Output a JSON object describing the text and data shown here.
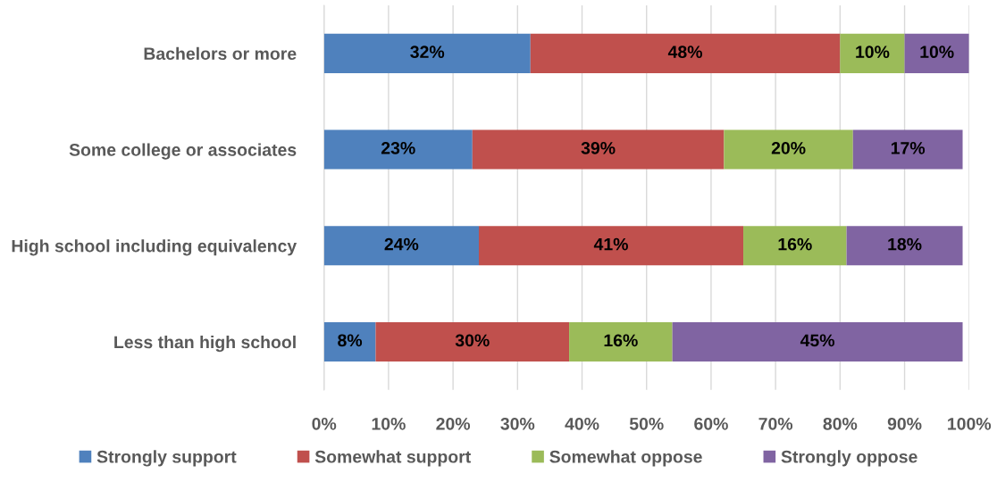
{
  "chart_data": {
    "type": "bar",
    "orientation": "horizontal",
    "stacked": true,
    "categories": [
      "Bachelors or more",
      "Some college or associates",
      "High school including equivalency",
      "Less than high school"
    ],
    "series": [
      {
        "name": "Strongly support",
        "color": "#4f81bd",
        "values": [
          32,
          23,
          24,
          8
        ],
        "value_labels": [
          "32%",
          "23%",
          "24%",
          "8%"
        ]
      },
      {
        "name": "Somewhat support",
        "color": "#c0504d",
        "values": [
          48,
          39,
          41,
          30
        ],
        "value_labels": [
          "48%",
          "39%",
          "41%",
          "30%"
        ]
      },
      {
        "name": "Somewhat oppose",
        "color": "#9bbb59",
        "values": [
          10,
          20,
          16,
          16
        ],
        "value_labels": [
          "10%",
          "20%",
          "16%",
          "16%"
        ]
      },
      {
        "name": "Strongly oppose",
        "color": "#8064a2",
        "values": [
          10,
          17,
          18,
          45
        ],
        "value_labels": [
          "10%",
          "17%",
          "18%",
          "45%"
        ]
      }
    ],
    "xlim": [
      0,
      100
    ],
    "xticks": [
      {
        "value": 0,
        "label": "0%"
      },
      {
        "value": 10,
        "label": "10%"
      },
      {
        "value": 20,
        "label": "20%"
      },
      {
        "value": 30,
        "label": "30%"
      },
      {
        "value": 40,
        "label": "40%"
      },
      {
        "value": 50,
        "label": "50%"
      },
      {
        "value": 60,
        "label": "60%"
      },
      {
        "value": 70,
        "label": "70%"
      },
      {
        "value": 80,
        "label": "80%"
      },
      {
        "value": 90,
        "label": "90%"
      },
      {
        "value": 100,
        "label": "100%"
      }
    ],
    "grid": "x",
    "legend": "bottom"
  }
}
